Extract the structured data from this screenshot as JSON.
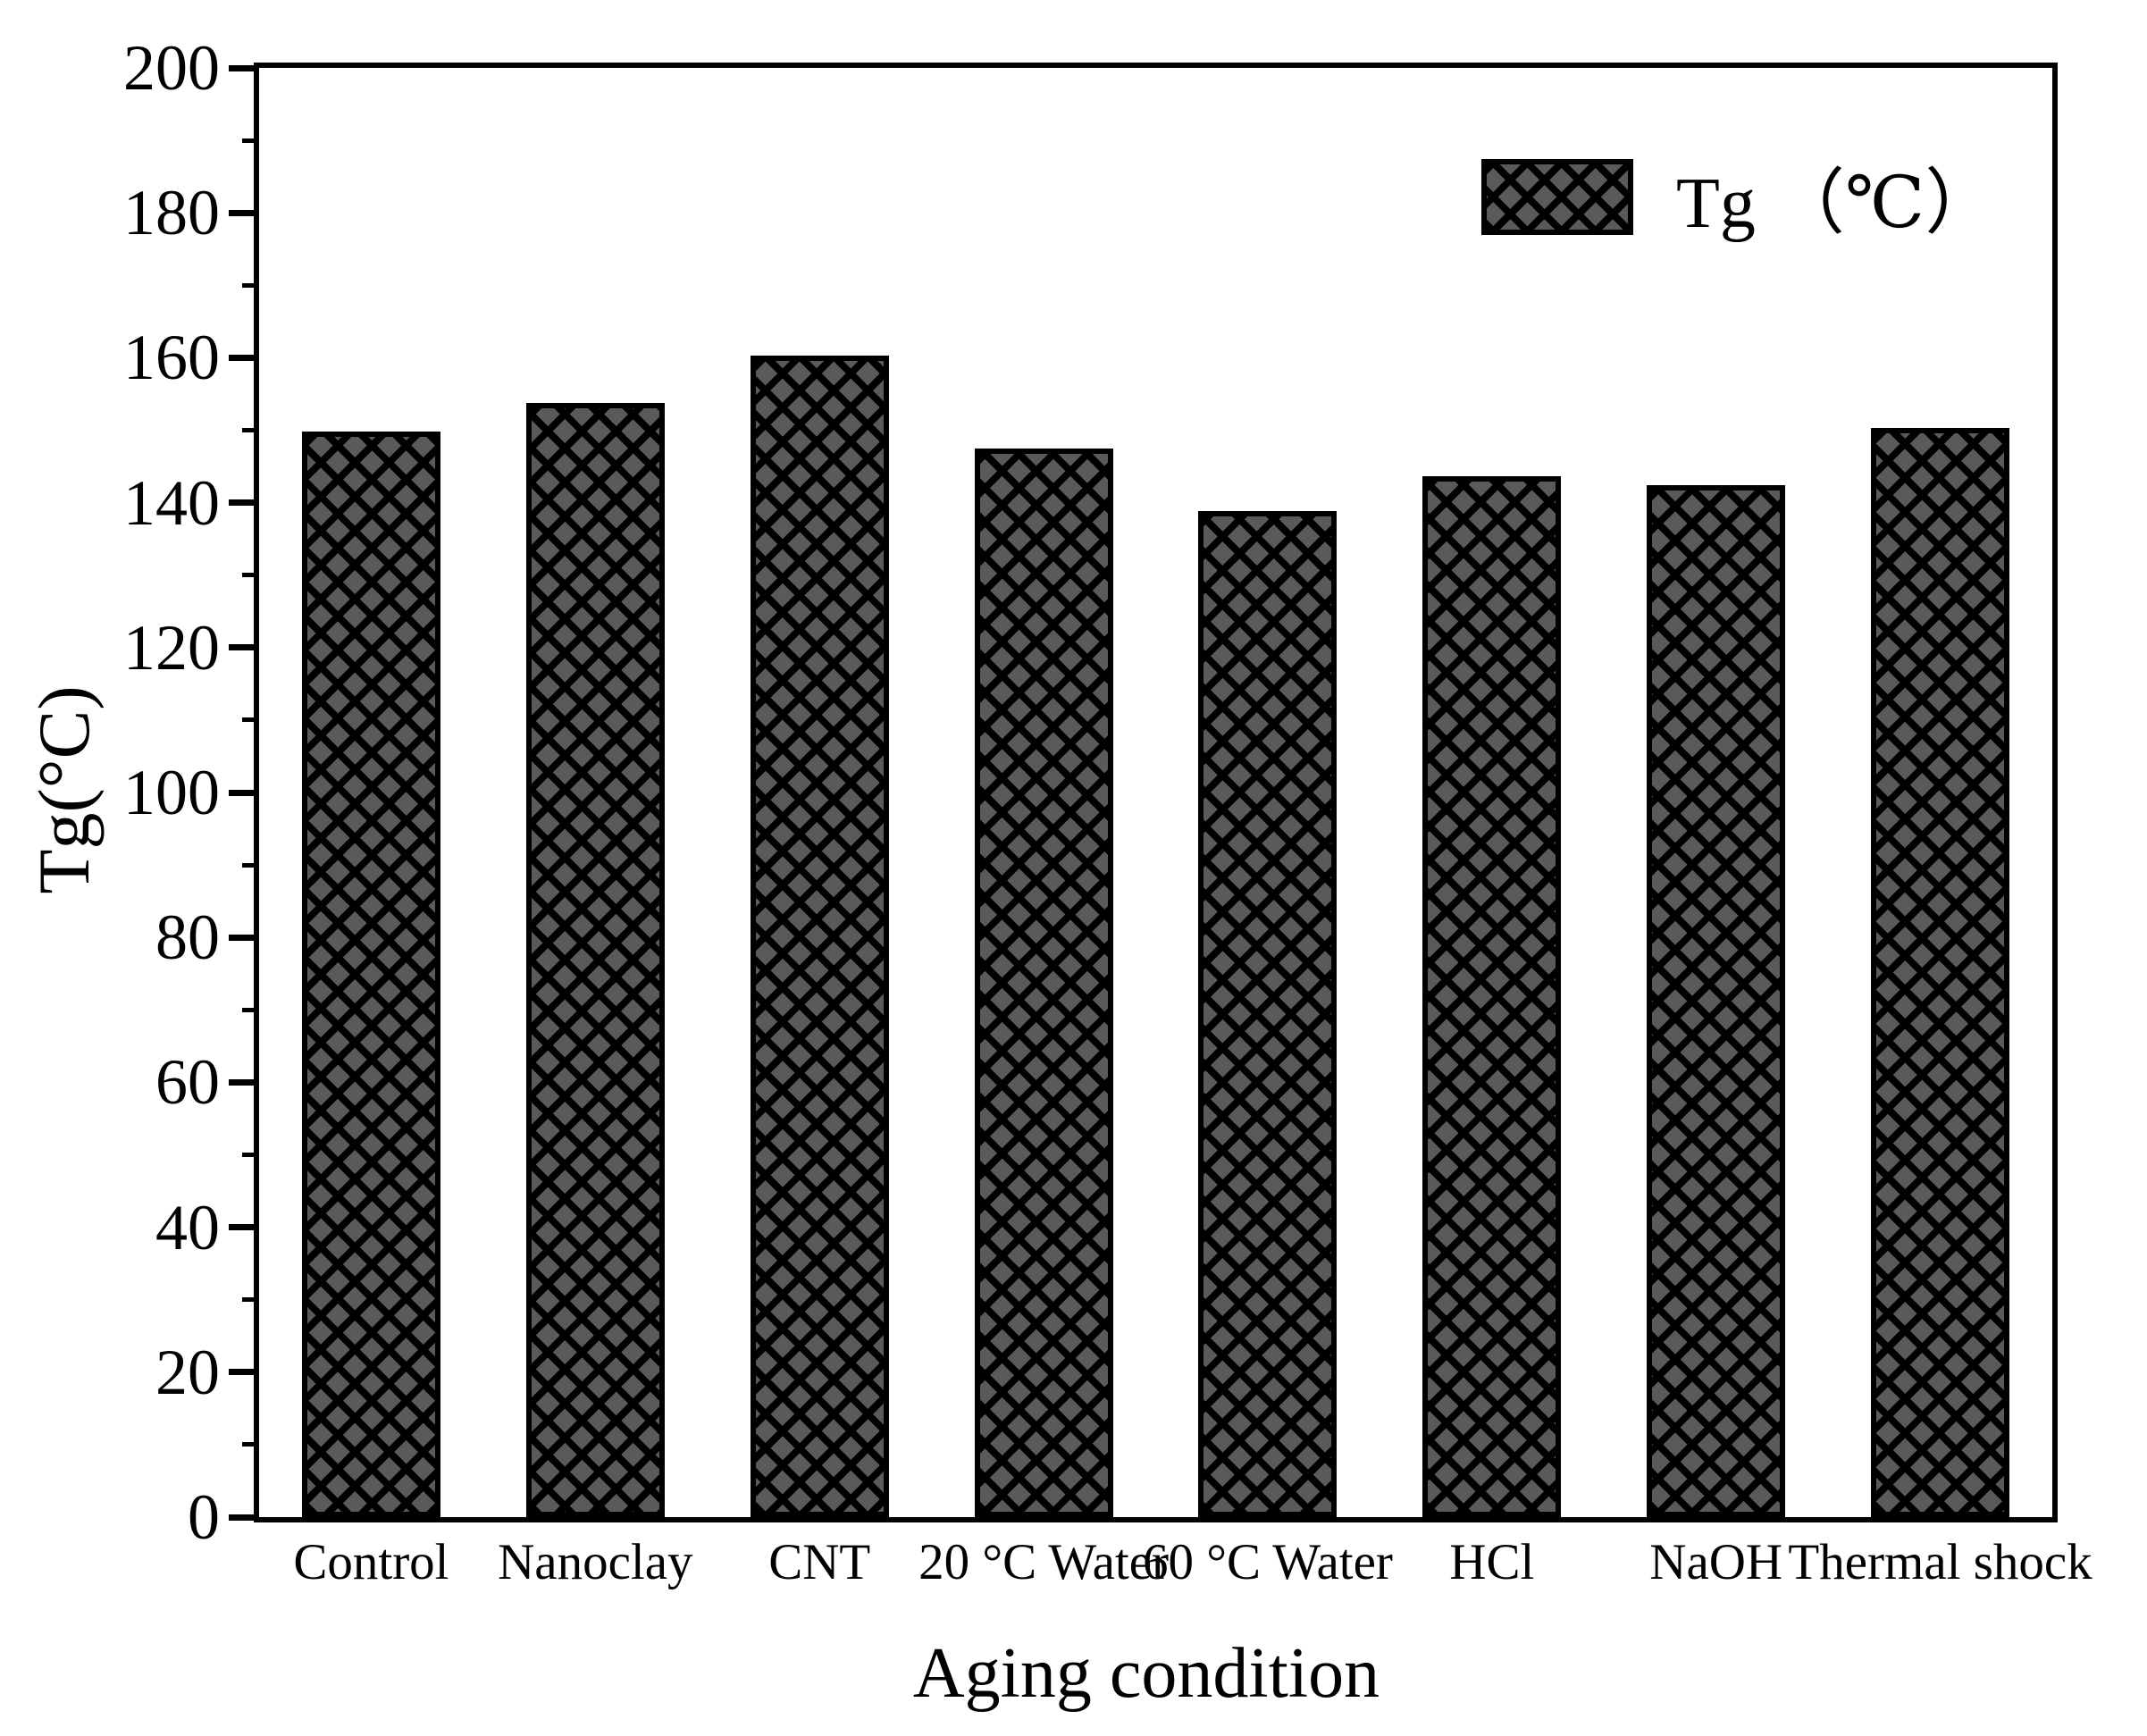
{
  "chart_data": {
    "type": "bar",
    "title": "",
    "xlabel": "Aging condition",
    "ylabel": "Tg(°C)",
    "legend": {
      "label": "Tg （℃）",
      "position": "top-right-inside"
    },
    "categories": [
      "Control",
      "Nanoclay",
      "CNT",
      "20 °C Water",
      "60 °C Water",
      "HCl",
      "NaOH",
      "Thermal shock"
    ],
    "series": [
      {
        "name": "Tg （℃）",
        "values": [
          149.8,
          153.7,
          160.3,
          147.5,
          138.8,
          143.6,
          142.4,
          150.3
        ]
      }
    ],
    "ylim": [
      0,
      200
    ],
    "yticks": [
      0,
      20,
      40,
      60,
      80,
      100,
      120,
      140,
      160,
      180,
      200
    ],
    "yminor_step": 10,
    "grid": false,
    "frame": true,
    "bar_fill_color": "#5a5a5a",
    "hatch_style": "cross-diagonal",
    "hatch_color": "#000000",
    "text_color": "#000000",
    "background_color": "#ffffff"
  }
}
